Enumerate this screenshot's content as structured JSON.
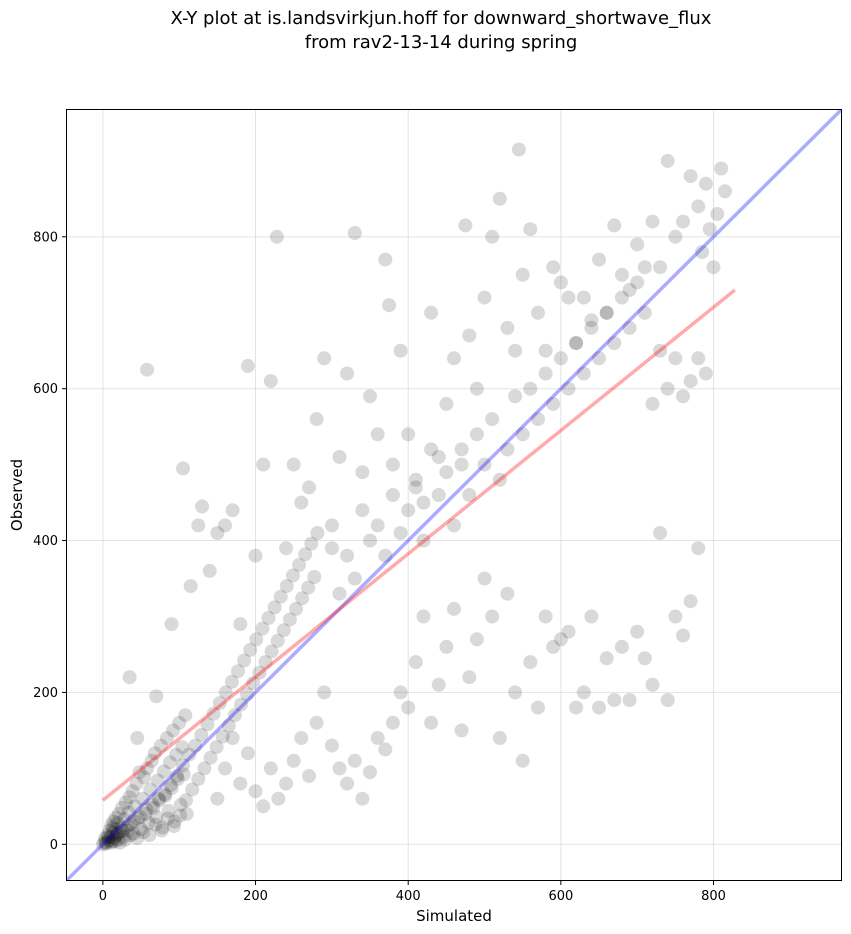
{
  "chart_data": {
    "type": "scatter",
    "title_lines": [
      "X-Y plot at is.landsvirkjun.hoff for downward_shortwave_flux",
      "from rav2-13-14 during spring"
    ],
    "xlabel": "Simulated",
    "ylabel": "Observed",
    "xlim": [
      -47,
      967
    ],
    "ylim": [
      -47,
      967
    ],
    "xticks": [
      0,
      200,
      400,
      600,
      800
    ],
    "yticks": [
      0,
      200,
      400,
      600,
      800
    ],
    "grid": true,
    "colors": {
      "points": "#000000",
      "identity_line": "#0000ff",
      "fit_line": "#ff0000",
      "grid": "#b0b0b0"
    },
    "identity_line": {
      "x": [
        -47,
        967
      ],
      "y": [
        -47,
        967
      ]
    },
    "fit_line": {
      "x": [
        0,
        828
      ],
      "y": [
        58,
        730
      ]
    },
    "points": [
      [
        0,
        0
      ],
      [
        2,
        3
      ],
      [
        3,
        8
      ],
      [
        5,
        2
      ],
      [
        6,
        12
      ],
      [
        8,
        5
      ],
      [
        9,
        18
      ],
      [
        10,
        10
      ],
      [
        11,
        25
      ],
      [
        12,
        4
      ],
      [
        13,
        15
      ],
      [
        14,
        30
      ],
      [
        15,
        8
      ],
      [
        16,
        20
      ],
      [
        17,
        35
      ],
      [
        18,
        12
      ],
      [
        19,
        28
      ],
      [
        20,
        6
      ],
      [
        21,
        40
      ],
      [
        22,
        16
      ],
      [
        24,
        22
      ],
      [
        25,
        48
      ],
      [
        27,
        10
      ],
      [
        28,
        33
      ],
      [
        30,
        55
      ],
      [
        32,
        18
      ],
      [
        34,
        42
      ],
      [
        35,
        62
      ],
      [
        37,
        26
      ],
      [
        39,
        70
      ],
      [
        40,
        14
      ],
      [
        42,
        50
      ],
      [
        44,
        80
      ],
      [
        46,
        34
      ],
      [
        48,
        95
      ],
      [
        50,
        20
      ],
      [
        52,
        60
      ],
      [
        54,
        88
      ],
      [
        56,
        40
      ],
      [
        58,
        100
      ],
      [
        60,
        28
      ],
      [
        62,
        72
      ],
      [
        64,
        110
      ],
      [
        66,
        48
      ],
      [
        68,
        120
      ],
      [
        70,
        36
      ],
      [
        72,
        84
      ],
      [
        74,
        58
      ],
      [
        76,
        130
      ],
      [
        78,
        22
      ],
      [
        80,
        96
      ],
      [
        82,
        64
      ],
      [
        84,
        140
      ],
      [
        86,
        44
      ],
      [
        88,
        108
      ],
      [
        90,
        74
      ],
      [
        92,
        150
      ],
      [
        94,
        30
      ],
      [
        96,
        118
      ],
      [
        98,
        86
      ],
      [
        100,
        160
      ],
      [
        102,
        52
      ],
      [
        104,
        128
      ],
      [
        106,
        92
      ],
      [
        108,
        170
      ],
      [
        110,
        40
      ],
      [
        4,
        1
      ],
      [
        7,
        9
      ],
      [
        11,
        2
      ],
      [
        13,
        22
      ],
      [
        16,
        4
      ],
      [
        19,
        14
      ],
      [
        22,
        2
      ],
      [
        26,
        18
      ],
      [
        29,
        6
      ],
      [
        33,
        24
      ],
      [
        36,
        12
      ],
      [
        41,
        30
      ],
      [
        45,
        8
      ],
      [
        49,
        36
      ],
      [
        53,
        16
      ],
      [
        57,
        46
      ],
      [
        61,
        12
      ],
      [
        65,
        52
      ],
      [
        69,
        26
      ],
      [
        73,
        60
      ],
      [
        77,
        18
      ],
      [
        81,
        66
      ],
      [
        85,
        34
      ],
      [
        89,
        78
      ],
      [
        93,
        24
      ],
      [
        97,
        90
      ],
      [
        101,
        38
      ],
      [
        105,
        104
      ],
      [
        109,
        58
      ],
      [
        113,
        118
      ],
      [
        117,
        72
      ],
      [
        121,
        130
      ],
      [
        125,
        86
      ],
      [
        129,
        144
      ],
      [
        133,
        100
      ],
      [
        137,
        158
      ],
      [
        141,
        114
      ],
      [
        145,
        172
      ],
      [
        149,
        128
      ],
      [
        153,
        186
      ],
      [
        157,
        142
      ],
      [
        161,
        200
      ],
      [
        165,
        156
      ],
      [
        169,
        214
      ],
      [
        173,
        170
      ],
      [
        177,
        228
      ],
      [
        181,
        184
      ],
      [
        185,
        242
      ],
      [
        189,
        198
      ],
      [
        193,
        256
      ],
      [
        197,
        212
      ],
      [
        201,
        270
      ],
      [
        205,
        226
      ],
      [
        209,
        284
      ],
      [
        213,
        240
      ],
      [
        217,
        298
      ],
      [
        221,
        254
      ],
      [
        225,
        312
      ],
      [
        229,
        268
      ],
      [
        233,
        326
      ],
      [
        237,
        282
      ],
      [
        241,
        340
      ],
      [
        245,
        296
      ],
      [
        249,
        354
      ],
      [
        253,
        310
      ],
      [
        257,
        368
      ],
      [
        261,
        324
      ],
      [
        265,
        382
      ],
      [
        269,
        338
      ],
      [
        273,
        396
      ],
      [
        277,
        352
      ],
      [
        281,
        410
      ],
      [
        35,
        220
      ],
      [
        45,
        140
      ],
      [
        58,
        625
      ],
      [
        70,
        195
      ],
      [
        90,
        290
      ],
      [
        105,
        495
      ],
      [
        115,
        340
      ],
      [
        125,
        420
      ],
      [
        130,
        445
      ],
      [
        140,
        360
      ],
      [
        150,
        410
      ],
      [
        160,
        420
      ],
      [
        170,
        440
      ],
      [
        180,
        290
      ],
      [
        190,
        630
      ],
      [
        200,
        380
      ],
      [
        210,
        500
      ],
      [
        220,
        610
      ],
      [
        228,
        800
      ],
      [
        240,
        390
      ],
      [
        250,
        500
      ],
      [
        260,
        450
      ],
      [
        270,
        470
      ],
      [
        280,
        560
      ],
      [
        290,
        640
      ],
      [
        300,
        390
      ],
      [
        310,
        510
      ],
      [
        320,
        620
      ],
      [
        330,
        805
      ],
      [
        340,
        490
      ],
      [
        350,
        590
      ],
      [
        360,
        540
      ],
      [
        370,
        770
      ],
      [
        375,
        710
      ],
      [
        380,
        500
      ],
      [
        390,
        650
      ],
      [
        400,
        540
      ],
      [
        410,
        480
      ],
      [
        420,
        450
      ],
      [
        430,
        700
      ],
      [
        440,
        510
      ],
      [
        450,
        580
      ],
      [
        460,
        640
      ],
      [
        470,
        520
      ],
      [
        475,
        815
      ],
      [
        480,
        670
      ],
      [
        490,
        600
      ],
      [
        500,
        720
      ],
      [
        510,
        800
      ],
      [
        520,
        850
      ],
      [
        530,
        680
      ],
      [
        540,
        650
      ],
      [
        545,
        915
      ],
      [
        550,
        750
      ],
      [
        560,
        810
      ],
      [
        570,
        700
      ],
      [
        580,
        650
      ],
      [
        590,
        760
      ],
      [
        600,
        740
      ],
      [
        610,
        720
      ],
      [
        620,
        660
      ],
      [
        630,
        720
      ],
      [
        640,
        690
      ],
      [
        650,
        770
      ],
      [
        660,
        700
      ],
      [
        670,
        815
      ],
      [
        680,
        750
      ],
      [
        690,
        730
      ],
      [
        700,
        790
      ],
      [
        710,
        760
      ],
      [
        720,
        820
      ],
      [
        730,
        760
      ],
      [
        740,
        900
      ],
      [
        750,
        800
      ],
      [
        760,
        820
      ],
      [
        770,
        880
      ],
      [
        780,
        840
      ],
      [
        790,
        870
      ],
      [
        800,
        760
      ],
      [
        810,
        890
      ],
      [
        815,
        860
      ],
      [
        805,
        830
      ],
      [
        795,
        810
      ],
      [
        785,
        780
      ],
      [
        150,
        60
      ],
      [
        160,
        100
      ],
      [
        170,
        140
      ],
      [
        180,
        80
      ],
      [
        190,
        120
      ],
      [
        200,
        70
      ],
      [
        210,
        50
      ],
      [
        220,
        100
      ],
      [
        230,
        60
      ],
      [
        240,
        80
      ],
      [
        250,
        110
      ],
      [
        260,
        140
      ],
      [
        270,
        90
      ],
      [
        280,
        160
      ],
      [
        290,
        200
      ],
      [
        300,
        130
      ],
      [
        310,
        100
      ],
      [
        320,
        80
      ],
      [
        330,
        110
      ],
      [
        340,
        60
      ],
      [
        350,
        95
      ],
      [
        360,
        140
      ],
      [
        370,
        125
      ],
      [
        380,
        160
      ],
      [
        390,
        200
      ],
      [
        400,
        180
      ],
      [
        410,
        240
      ],
      [
        420,
        300
      ],
      [
        430,
        160
      ],
      [
        440,
        210
      ],
      [
        450,
        260
      ],
      [
        460,
        310
      ],
      [
        470,
        150
      ],
      [
        480,
        220
      ],
      [
        490,
        270
      ],
      [
        500,
        350
      ],
      [
        510,
        300
      ],
      [
        520,
        140
      ],
      [
        530,
        330
      ],
      [
        540,
        200
      ],
      [
        550,
        110
      ],
      [
        560,
        240
      ],
      [
        570,
        180
      ],
      [
        580,
        300
      ],
      [
        590,
        260
      ],
      [
        600,
        270
      ],
      [
        610,
        280
      ],
      [
        620,
        180
      ],
      [
        630,
        200
      ],
      [
        640,
        300
      ],
      [
        650,
        180
      ],
      [
        660,
        245
      ],
      [
        670,
        190
      ],
      [
        680,
        260
      ],
      [
        690,
        190
      ],
      [
        700,
        280
      ],
      [
        710,
        245
      ],
      [
        720,
        210
      ],
      [
        730,
        410
      ],
      [
        740,
        190
      ],
      [
        750,
        300
      ],
      [
        760,
        275
      ],
      [
        770,
        320
      ],
      [
        780,
        390
      ],
      [
        300,
        420
      ],
      [
        310,
        330
      ],
      [
        320,
        380
      ],
      [
        330,
        350
      ],
      [
        340,
        440
      ],
      [
        350,
        400
      ],
      [
        360,
        420
      ],
      [
        370,
        380
      ],
      [
        380,
        460
      ],
      [
        390,
        410
      ],
      [
        400,
        440
      ],
      [
        410,
        470
      ],
      [
        420,
        400
      ],
      [
        430,
        520
      ],
      [
        440,
        460
      ],
      [
        450,
        490
      ],
      [
        460,
        420
      ],
      [
        470,
        500
      ],
      [
        480,
        460
      ],
      [
        490,
        540
      ],
      [
        500,
        500
      ],
      [
        510,
        560
      ],
      [
        520,
        480
      ],
      [
        530,
        520
      ],
      [
        540,
        590
      ],
      [
        550,
        540
      ],
      [
        560,
        600
      ],
      [
        570,
        560
      ],
      [
        580,
        620
      ],
      [
        590,
        580
      ],
      [
        600,
        640
      ],
      [
        610,
        600
      ],
      [
        620,
        660
      ],
      [
        630,
        620
      ],
      [
        640,
        680
      ],
      [
        650,
        640
      ],
      [
        660,
        700
      ],
      [
        670,
        660
      ],
      [
        680,
        720
      ],
      [
        690,
        680
      ],
      [
        700,
        740
      ],
      [
        710,
        700
      ],
      [
        720,
        580
      ],
      [
        730,
        650
      ],
      [
        740,
        600
      ],
      [
        750,
        640
      ],
      [
        760,
        590
      ],
      [
        770,
        610
      ],
      [
        780,
        640
      ],
      [
        790,
        620
      ]
    ]
  }
}
